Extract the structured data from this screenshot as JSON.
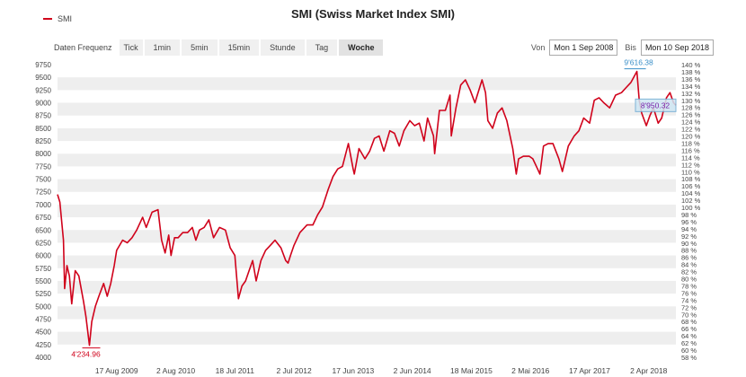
{
  "legend": {
    "label": "SMI",
    "color": "#d0021b"
  },
  "title": "SMI (Swiss Market Index SMI)",
  "toolbar": {
    "label": "Daten Frequenz",
    "buttons": [
      "Tick",
      "1min",
      "5min",
      "15min",
      "Stunde",
      "Tag",
      "Woche"
    ],
    "active": "Woche"
  },
  "range": {
    "from_label": "Von",
    "from_value": "Mon 1 Sep 2008",
    "to_label": "Bis",
    "to_value": "Mon 10 Sep 2018"
  },
  "chart_data": {
    "type": "line",
    "series": [
      {
        "name": "SMI",
        "color": "#d0021b"
      }
    ],
    "y_left_ticks": [
      9750,
      9500,
      9250,
      9000,
      8750,
      8500,
      8250,
      8000,
      7750,
      7500,
      7250,
      7000,
      6750,
      6500,
      6250,
      6000,
      5750,
      5500,
      5250,
      5000,
      4750,
      4500,
      4250,
      4000
    ],
    "y_left_labels": [
      "9750",
      "9500",
      "9250",
      "9000",
      "8750",
      "8500",
      "8250",
      "8000",
      "7750",
      "7500",
      "7250",
      "7000",
      "6750",
      "6500",
      "6250",
      "6000",
      "5750",
      "5500",
      "5250",
      "5000",
      "4750",
      "4500",
      "4250",
      "4000"
    ],
    "y_right_labels": [
      "140 %",
      "138 %",
      "136 %",
      "134 %",
      "132 %",
      "130 %",
      "128 %",
      "126 %",
      "124 %",
      "122 %",
      "120 %",
      "118 %",
      "116 %",
      "114 %",
      "112 %",
      "110 %",
      "108 %",
      "106 %",
      "104 %",
      "102 %",
      "100 %",
      "98 %",
      "96 %",
      "94 %",
      "92 %",
      "90 %",
      "88 %",
      "86 %",
      "84 %",
      "82 %",
      "80 %",
      "78 %",
      "76 %",
      "74 %",
      "72 %",
      "70 %",
      "68 %",
      "66 %",
      "64 %",
      "62 %",
      "60 %",
      "58 %"
    ],
    "ylim": [
      4000,
      9750
    ],
    "x_tick_labels": [
      "17 Aug 2009",
      "2 Aug 2010",
      "18 Jul 2011",
      "2 Jul 2012",
      "17 Jun 2013",
      "2 Jun 2014",
      "18 Mai 2015",
      "2 Mai 2016",
      "17 Apr 2017",
      "2 Apr 2018"
    ],
    "x_tick_dates": [
      "2009-08-17",
      "2010-08-02",
      "2011-07-18",
      "2012-07-02",
      "2013-06-17",
      "2014-06-02",
      "2015-05-18",
      "2016-05-02",
      "2017-04-17",
      "2018-04-02"
    ],
    "x_range": [
      "2008-09-01",
      "2018-09-10"
    ],
    "points": [
      [
        "2008-09-01",
        7200
      ],
      [
        "2008-09-15",
        7050
      ],
      [
        "2008-10-06",
        6300
      ],
      [
        "2008-10-13",
        5350
      ],
      [
        "2008-10-27",
        5800
      ],
      [
        "2008-11-10",
        5600
      ],
      [
        "2008-11-24",
        5050
      ],
      [
        "2008-12-15",
        5700
      ],
      [
        "2009-01-05",
        5600
      ],
      [
        "2009-02-02",
        5100
      ],
      [
        "2009-02-16",
        4800
      ],
      [
        "2009-03-09",
        4234.96
      ],
      [
        "2009-03-23",
        4700
      ],
      [
        "2009-04-13",
        5000
      ],
      [
        "2009-05-04",
        5200
      ],
      [
        "2009-06-01",
        5450
      ],
      [
        "2009-06-22",
        5200
      ],
      [
        "2009-07-13",
        5450
      ],
      [
        "2009-08-03",
        5800
      ],
      [
        "2009-08-17",
        6100
      ],
      [
        "2009-09-21",
        6300
      ],
      [
        "2009-10-19",
        6250
      ],
      [
        "2009-11-16",
        6350
      ],
      [
        "2009-12-14",
        6500
      ],
      [
        "2010-01-18",
        6750
      ],
      [
        "2010-02-08",
        6550
      ],
      [
        "2010-03-15",
        6850
      ],
      [
        "2010-04-19",
        6900
      ],
      [
        "2010-05-10",
        6300
      ],
      [
        "2010-05-31",
        6050
      ],
      [
        "2010-06-21",
        6400
      ],
      [
        "2010-07-05",
        6000
      ],
      [
        "2010-07-26",
        6350
      ],
      [
        "2010-08-16",
        6350
      ],
      [
        "2010-09-13",
        6450
      ],
      [
        "2010-10-11",
        6450
      ],
      [
        "2010-11-08",
        6550
      ],
      [
        "2010-11-29",
        6300
      ],
      [
        "2010-12-20",
        6500
      ],
      [
        "2011-01-17",
        6550
      ],
      [
        "2011-02-14",
        6700
      ],
      [
        "2011-03-14",
        6350
      ],
      [
        "2011-04-18",
        6550
      ],
      [
        "2011-05-23",
        6500
      ],
      [
        "2011-06-20",
        6150
      ],
      [
        "2011-07-18",
        6000
      ],
      [
        "2011-08-08",
        5150
      ],
      [
        "2011-08-29",
        5400
      ],
      [
        "2011-09-19",
        5500
      ],
      [
        "2011-10-10",
        5700
      ],
      [
        "2011-10-31",
        5900
      ],
      [
        "2011-11-21",
        5500
      ],
      [
        "2011-12-19",
        5900
      ],
      [
        "2012-01-16",
        6100
      ],
      [
        "2012-02-13",
        6200
      ],
      [
        "2012-03-12",
        6300
      ],
      [
        "2012-04-16",
        6150
      ],
      [
        "2012-05-14",
        5900
      ],
      [
        "2012-05-28",
        5850
      ],
      [
        "2012-06-11",
        6000
      ],
      [
        "2012-07-02",
        6200
      ],
      [
        "2012-08-06",
        6450
      ],
      [
        "2012-09-17",
        6600
      ],
      [
        "2012-10-22",
        6600
      ],
      [
        "2012-11-19",
        6800
      ],
      [
        "2012-12-17",
        6950
      ],
      [
        "2013-01-21",
        7300
      ],
      [
        "2013-02-18",
        7550
      ],
      [
        "2013-03-18",
        7700
      ],
      [
        "2013-04-15",
        7750
      ],
      [
        "2013-05-20",
        8200
      ],
      [
        "2013-06-17",
        7700
      ],
      [
        "2013-06-24",
        7600
      ],
      [
        "2013-07-22",
        8100
      ],
      [
        "2013-08-26",
        7900
      ],
      [
        "2013-09-23",
        8050
      ],
      [
        "2013-10-21",
        8300
      ],
      [
        "2013-11-18",
        8350
      ],
      [
        "2013-12-16",
        8050
      ],
      [
        "2014-01-20",
        8450
      ],
      [
        "2014-02-17",
        8400
      ],
      [
        "2014-03-17",
        8150
      ],
      [
        "2014-04-14",
        8450
      ],
      [
        "2014-05-19",
        8650
      ],
      [
        "2014-06-16",
        8550
      ],
      [
        "2014-07-14",
        8600
      ],
      [
        "2014-08-11",
        8250
      ],
      [
        "2014-09-01",
        8700
      ],
      [
        "2014-10-06",
        8350
      ],
      [
        "2014-10-13",
        8000
      ],
      [
        "2014-11-10",
        8850
      ],
      [
        "2014-12-15",
        8850
      ],
      [
        "2015-01-12",
        9150
      ],
      [
        "2015-01-19",
        8350
      ],
      [
        "2015-02-16",
        8900
      ],
      [
        "2015-03-16",
        9350
      ],
      [
        "2015-04-13",
        9450
      ],
      [
        "2015-05-11",
        9250
      ],
      [
        "2015-06-08",
        9000
      ],
      [
        "2015-07-20",
        9450
      ],
      [
        "2015-08-10",
        9200
      ],
      [
        "2015-08-24",
        8650
      ],
      [
        "2015-09-21",
        8500
      ],
      [
        "2015-10-19",
        8800
      ],
      [
        "2015-11-16",
        8900
      ],
      [
        "2015-12-14",
        8650
      ],
      [
        "2016-01-18",
        8100
      ],
      [
        "2016-02-08",
        7600
      ],
      [
        "2016-02-22",
        7900
      ],
      [
        "2016-03-21",
        7950
      ],
      [
        "2016-04-25",
        7950
      ],
      [
        "2016-05-16",
        7900
      ],
      [
        "2016-06-13",
        7700
      ],
      [
        "2016-06-27",
        7600
      ],
      [
        "2016-07-18",
        8150
      ],
      [
        "2016-08-15",
        8200
      ],
      [
        "2016-09-12",
        8200
      ],
      [
        "2016-10-17",
        7900
      ],
      [
        "2016-11-07",
        7650
      ],
      [
        "2016-12-12",
        8150
      ],
      [
        "2017-01-16",
        8350
      ],
      [
        "2017-02-13",
        8450
      ],
      [
        "2017-03-13",
        8700
      ],
      [
        "2017-04-17",
        8600
      ],
      [
        "2017-05-15",
        9050
      ],
      [
        "2017-06-12",
        9100
      ],
      [
        "2017-07-10",
        9000
      ],
      [
        "2017-08-14",
        8900
      ],
      [
        "2017-09-18",
        9150
      ],
      [
        "2017-10-23",
        9200
      ],
      [
        "2017-11-20",
        9300
      ],
      [
        "2017-12-18",
        9400
      ],
      [
        "2018-01-22",
        9616.38
      ],
      [
        "2018-02-05",
        9050
      ],
      [
        "2018-02-19",
        8800
      ],
      [
        "2018-03-19",
        8550
      ],
      [
        "2018-04-09",
        8750
      ],
      [
        "2018-04-30",
        8900
      ],
      [
        "2018-05-28",
        8600
      ],
      [
        "2018-06-18",
        8700
      ],
      [
        "2018-07-16",
        9100
      ],
      [
        "2018-08-06",
        9200
      ],
      [
        "2018-08-27",
        9000
      ],
      [
        "2018-09-10",
        8950.32
      ]
    ],
    "annotations": {
      "max_label": "9'616.38",
      "min_label": "4'234.96",
      "last_label": "8'950.32"
    }
  }
}
